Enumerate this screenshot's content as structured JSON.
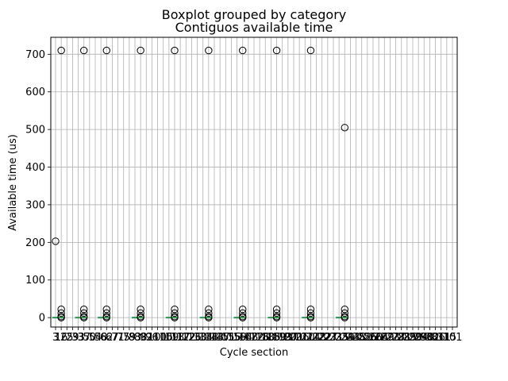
{
  "chart_data": {
    "type": "boxplot",
    "suptitle": "Boxplot grouped by category",
    "title": "Contiguos available time",
    "xlabel": "Cycle section",
    "ylabel": "Available time (us)",
    "ylim": [
      -25,
      745
    ],
    "yticks": [
      0,
      100,
      200,
      300,
      400,
      500,
      600,
      700
    ],
    "grid": true,
    "categories": [
      "3",
      "16",
      "25",
      "29",
      "33",
      "37",
      "50",
      "54",
      "58",
      "62",
      "67",
      "71",
      "75",
      "79",
      "83",
      "88",
      "92",
      "96",
      "101",
      "105",
      "109",
      "113",
      "117",
      "122",
      "126",
      "130",
      "134",
      "138",
      "143",
      "147",
      "151",
      "155",
      "159",
      "164",
      "168",
      "172",
      "176",
      "180",
      "185",
      "189",
      "193",
      "197",
      "201",
      "206",
      "210",
      "214",
      "218",
      "222",
      "227",
      "231",
      "235",
      "239",
      "243",
      "248",
      "252",
      "256",
      "260",
      "264",
      "269",
      "273",
      "277",
      "281",
      "285",
      "290",
      "294",
      "298",
      "302",
      "306",
      "311",
      "315",
      "101"
    ],
    "boxes": [
      {
        "category": "3",
        "median": 0,
        "q1": 0,
        "q3": 0,
        "whisker_low": 0,
        "whisker_high": 0,
        "outliers": [
          203
        ]
      },
      {
        "category": "16",
        "median": 0,
        "q1": 0,
        "q3": 0,
        "whisker_low": 0,
        "whisker_high": 0,
        "outliers": [
          710,
          22,
          12,
          3,
          0
        ]
      },
      {
        "category": "33",
        "median": 0,
        "q1": 0,
        "q3": 0,
        "whisker_low": 0,
        "whisker_high": 0,
        "outliers": []
      },
      {
        "category": "37",
        "median": 0,
        "q1": 0,
        "q3": 0,
        "whisker_low": 0,
        "whisker_high": 0,
        "outliers": [
          710,
          22,
          12,
          3,
          0
        ]
      },
      {
        "category": "58",
        "median": 0,
        "q1": 0,
        "q3": 0,
        "whisker_low": 0,
        "whisker_high": 0,
        "outliers": []
      },
      {
        "category": "62",
        "median": 0,
        "q1": 0,
        "q3": 0,
        "whisker_low": 0,
        "whisker_high": 0,
        "outliers": [
          710,
          22,
          12,
          3,
          0
        ]
      },
      {
        "category": "83",
        "median": 0,
        "q1": 0,
        "q3": 0,
        "whisker_low": 0,
        "whisker_high": 0,
        "outliers": []
      },
      {
        "category": "88",
        "median": 0,
        "q1": 0,
        "q3": 0,
        "whisker_low": 0,
        "whisker_high": 0,
        "outliers": [
          710,
          22,
          12,
          3,
          0
        ]
      },
      {
        "category": "109",
        "median": 0,
        "q1": 0,
        "q3": 0,
        "whisker_low": 0,
        "whisker_high": 0,
        "outliers": []
      },
      {
        "category": "113",
        "median": 0,
        "q1": 0,
        "q3": 0,
        "whisker_low": 0,
        "whisker_high": 0,
        "outliers": [
          710,
          22,
          12,
          3,
          0
        ]
      },
      {
        "category": "134",
        "median": 0,
        "q1": 0,
        "q3": 0,
        "whisker_low": 0,
        "whisker_high": 0,
        "outliers": []
      },
      {
        "category": "138",
        "median": 0,
        "q1": 0,
        "q3": 0,
        "whisker_low": 0,
        "whisker_high": 0,
        "outliers": [
          710,
          22,
          12,
          3,
          0
        ]
      },
      {
        "category": "159",
        "median": 0,
        "q1": 0,
        "q3": 0,
        "whisker_low": 0,
        "whisker_high": 0,
        "outliers": []
      },
      {
        "category": "164",
        "median": 0,
        "q1": 0,
        "q3": 0,
        "whisker_low": 0,
        "whisker_high": 0,
        "outliers": [
          710,
          22,
          12,
          3,
          0
        ]
      },
      {
        "category": "185",
        "median": 0,
        "q1": 0,
        "q3": 0,
        "whisker_low": 0,
        "whisker_high": 0,
        "outliers": []
      },
      {
        "category": "189",
        "median": 0,
        "q1": 0,
        "q3": 0,
        "whisker_low": 0,
        "whisker_high": 0,
        "outliers": [
          710,
          22,
          12,
          3,
          0
        ]
      },
      {
        "category": "210",
        "median": 0,
        "q1": 0,
        "q3": 0,
        "whisker_low": 0,
        "whisker_high": 0,
        "outliers": []
      },
      {
        "category": "214",
        "median": 0,
        "q1": 0,
        "q3": 0,
        "whisker_low": 0,
        "whisker_high": 0,
        "outliers": [
          710,
          22,
          12,
          3,
          0
        ]
      },
      {
        "category": "235",
        "median": 0,
        "q1": 0,
        "q3": 0,
        "whisker_low": 0,
        "whisker_high": 0,
        "outliers": []
      },
      {
        "category": "239",
        "median": 0,
        "q1": 0,
        "q3": 0,
        "whisker_low": 0,
        "whisker_high": 0,
        "outliers": [
          505,
          22,
          12,
          3,
          0
        ]
      }
    ],
    "colors": {
      "box": "#1f77b4",
      "median": "#2ca02c",
      "whisker": "#000000",
      "grid": "#b0b0b0",
      "flier": "#000000"
    }
  }
}
